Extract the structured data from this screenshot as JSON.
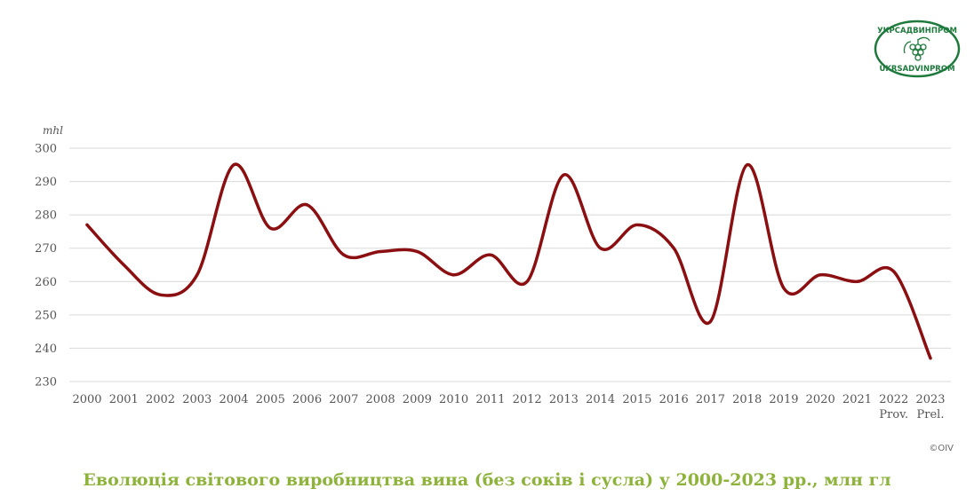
{
  "logo": {
    "top_text": "УКРСАДВИНПРОМ",
    "bottom_text": "UKRSADVINPROM"
  },
  "credit": "©OIV",
  "caption": "Еволюція світового виробництва вина (без соків і сусла) у 2000-2023  рр., млн гл",
  "chart_data": {
    "type": "line",
    "title": "",
    "xlabel": "",
    "ylabel": "mhl",
    "categories": [
      "2000",
      "2001",
      "2002",
      "2003",
      "2004",
      "2005",
      "2006",
      "2007",
      "2008",
      "2009",
      "2010",
      "2011",
      "2012",
      "2013",
      "2014",
      "2015",
      "2016",
      "2017",
      "2018",
      "2019",
      "2020",
      "2021",
      "2022",
      "2023"
    ],
    "category_sublabels": {
      "2022": "Prov.",
      "2023": "Prel."
    },
    "series": [
      {
        "values": [
          277,
          265,
          256,
          262,
          295,
          276,
          283,
          268,
          269,
          269,
          262,
          268,
          260,
          292,
          270,
          277,
          270,
          248,
          295,
          258,
          262,
          260,
          263,
          237
        ],
        "color": "#8b0f10"
      }
    ],
    "ylim": [
      230,
      300
    ],
    "yticks": [
      230,
      240,
      250,
      260,
      270,
      280,
      290,
      300
    ],
    "grid": true,
    "smooth": true,
    "legend": "none"
  }
}
